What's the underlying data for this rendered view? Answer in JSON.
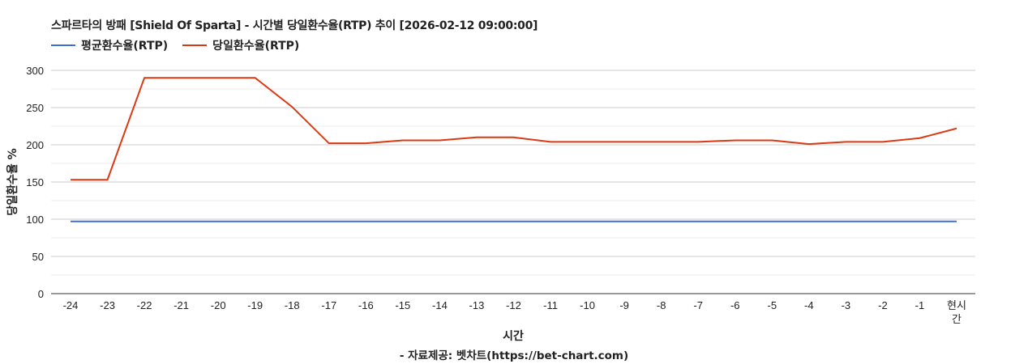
{
  "chart_data": {
    "type": "line",
    "title": "스파르타의 방패 [Shield Of Sparta] - 시간별 당일환수율(RTP) 추이 [2026-02-12 09:00:00]",
    "xlabel": "시간",
    "ylabel": "당일환수율 %",
    "footer": "- 자료제공: 벳차트(https://bet-chart.com)",
    "categories": [
      "-24",
      "-23",
      "-22",
      "-21",
      "-20",
      "-19",
      "-18",
      "-17",
      "-16",
      "-15",
      "-14",
      "-13",
      "-12",
      "-11",
      "-10",
      "-9",
      "-8",
      "-7",
      "-6",
      "-5",
      "-4",
      "-3",
      "-2",
      "-1",
      "현시간"
    ],
    "ylim": [
      0,
      300
    ],
    "yticks": [
      0,
      50,
      100,
      150,
      200,
      250,
      300
    ],
    "grid": true,
    "legend": "top-left",
    "series": [
      {
        "name": "평균환수율(RTP)",
        "color": "#3c6fd9",
        "values": [
          97,
          97,
          97,
          97,
          97,
          97,
          97,
          97,
          97,
          97,
          97,
          97,
          97,
          97,
          97,
          97,
          97,
          97,
          97,
          97,
          97,
          97,
          97,
          97,
          97
        ]
      },
      {
        "name": "당일환수율(RTP)",
        "color": "#dc3912",
        "values": [
          153,
          153,
          290,
          290,
          290,
          290,
          251,
          202,
          202,
          206,
          206,
          210,
          210,
          204,
          204,
          204,
          204,
          204,
          206,
          206,
          201,
          204,
          204,
          209,
          222
        ]
      }
    ]
  }
}
